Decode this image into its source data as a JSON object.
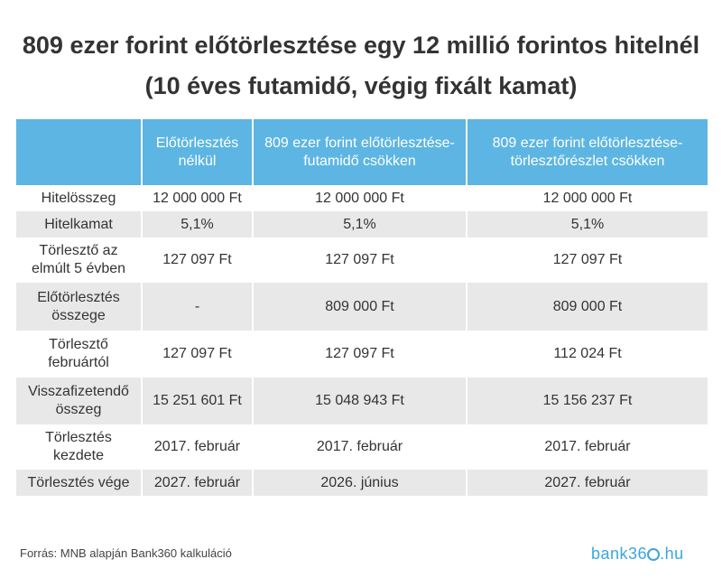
{
  "title": "809 ezer forint előtörlesztése egy 12 millió forintos hitelnél (10 éves futamidő, végig fixált kamat)",
  "table": {
    "headers": [
      "",
      "Előtörlesztés nélkül",
      "809 ezer forint előtörlesztése- futamidő csökken",
      "809 ezer forint előtörlesztése- törlesztőrészlet csökken"
    ],
    "rows": [
      [
        "Hitelösszeg",
        "12 000 000 Ft",
        "12 000 000 Ft",
        "12 000 000 Ft"
      ],
      [
        "Hitelkamat",
        "5,1%",
        "5,1%",
        "5,1%"
      ],
      [
        "Törlesztő az elmúlt 5 évben",
        "127 097 Ft",
        "127 097 Ft",
        "127 097 Ft"
      ],
      [
        "Előtörlesztés összege",
        "-",
        "809 000 Ft",
        "809 000 Ft"
      ],
      [
        "Törlesztő februártól",
        "127 097 Ft",
        "127 097 Ft",
        "112 024 Ft"
      ],
      [
        "Visszafizetendő összeg",
        "15 251 601 Ft",
        "15 048 943 Ft",
        "15 156 237 Ft"
      ],
      [
        "Törlesztés kezdete",
        "2017. február",
        "2017. február",
        "2017. február"
      ],
      [
        "Törlesztés vége",
        "2027. február",
        "2026. június",
        "2027. február"
      ]
    ]
  },
  "footer": "Forrás: MNB alapján Bank360 kalkuláció",
  "logo": "bank360.hu",
  "colors": {
    "header": "#5db5e3",
    "stripe": "#e8e8e8",
    "logo": "#3ba7de"
  }
}
